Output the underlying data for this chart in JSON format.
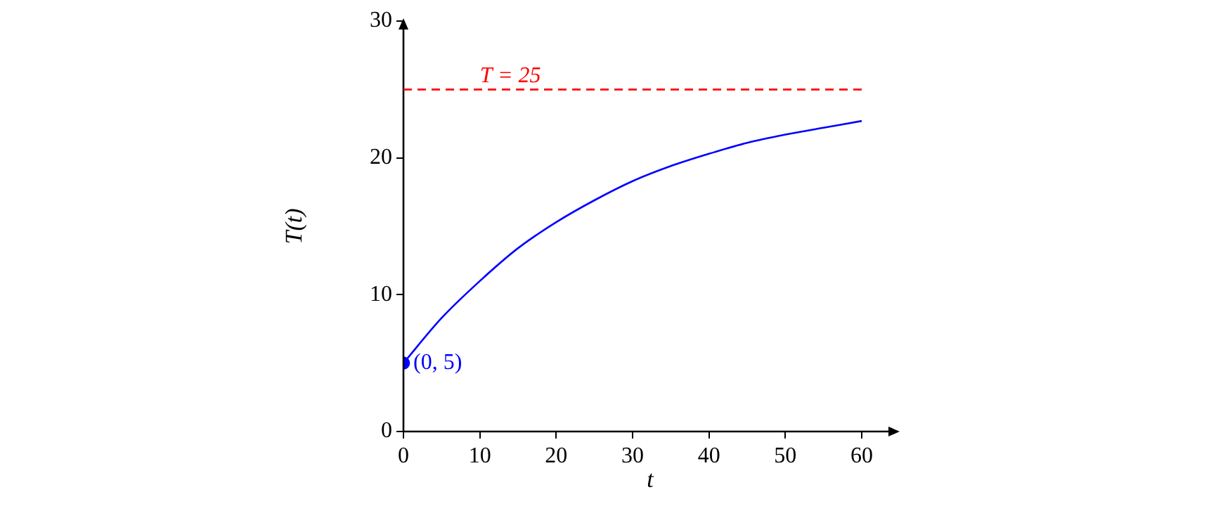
{
  "chart_data": {
    "type": "line",
    "xlabel": "t",
    "ylabel": "T(t)",
    "xlim": [
      0,
      64.6
    ],
    "ylim": [
      0,
      30
    ],
    "xticks": [
      0,
      10,
      20,
      30,
      40,
      50,
      60
    ],
    "yticks": [
      0,
      10,
      20,
      30
    ],
    "grid": false,
    "legend": false,
    "series": [
      {
        "color": "#0000ff",
        "marker": "none",
        "x": [
          0,
          5,
          10,
          15,
          20,
          25,
          30,
          35,
          40,
          45,
          50,
          55,
          60
        ],
        "values": [
          5,
          8.3,
          11.0,
          13.4,
          15.3,
          16.9,
          18.3,
          19.4,
          20.3,
          21.1,
          21.7,
          22.2,
          22.7
        ]
      },
      {
        "type": "scatter",
        "color": "#0000ff",
        "marker": "circle",
        "x": [
          0
        ],
        "values": [
          5
        ]
      }
    ],
    "ref_lines": [
      {
        "axis": "y",
        "value": 25,
        "label": "T = 25",
        "color": "#ff0000",
        "line_style": "dashed"
      }
    ],
    "annotations": [
      {
        "text": "(0, 5)",
        "x": 0,
        "y": 5
      }
    ]
  }
}
